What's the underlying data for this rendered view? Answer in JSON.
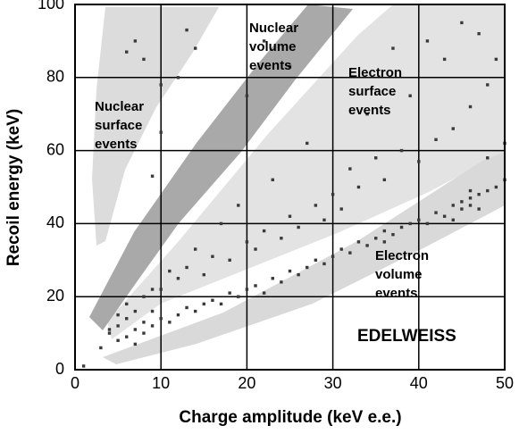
{
  "chart_data": {
    "type": "scatter",
    "x_label": "Charge amplitude (keV e.e.)",
    "y_label": "Recoil energy (keV)",
    "xlim": [
      0,
      50
    ],
    "ylim": [
      0,
      100
    ],
    "xticks": [
      0,
      10,
      20,
      30,
      40,
      50
    ],
    "yticks": [
      0,
      20,
      40,
      60,
      80,
      100
    ],
    "grid": true,
    "color": "#3a3a3a",
    "annotations": [
      [
        "Nuclear",
        "surface",
        "events"
      ],
      [
        "Nuclear",
        "volume",
        "events"
      ],
      [
        "Electron",
        "surface",
        "events"
      ],
      [
        "Electron",
        "volume",
        "events"
      ],
      [
        "EDELWEISS"
      ]
    ],
    "x": [
      1,
      4,
      5,
      5,
      6,
      6,
      7,
      7,
      8,
      8,
      9,
      9,
      10,
      11,
      12,
      13,
      14,
      15,
      16,
      17,
      18,
      19,
      20,
      21,
      22,
      23,
      24,
      25,
      26,
      27,
      28,
      29,
      30,
      31,
      32,
      33,
      34,
      35,
      36,
      37,
      38,
      39,
      40,
      41,
      42,
      43,
      44,
      45,
      45,
      46,
      46,
      47,
      47,
      48,
      49,
      50,
      46,
      44,
      36,
      6,
      8,
      10,
      12,
      13,
      15,
      16,
      18,
      20,
      21,
      22,
      24,
      25,
      26,
      28,
      29,
      30,
      31,
      32,
      33,
      35,
      36,
      38,
      40,
      42,
      44,
      46,
      48,
      49,
      39,
      41,
      45,
      37,
      34,
      27,
      23,
      19,
      17,
      14,
      11,
      9,
      7,
      5,
      4,
      3,
      6,
      7,
      8,
      10,
      12,
      13,
      14,
      20,
      22,
      25,
      43,
      47,
      50,
      48,
      10,
      9
    ],
    "y": [
      1,
      10,
      8,
      12,
      9,
      14,
      11,
      7,
      13,
      10,
      12,
      16,
      14,
      13,
      15,
      17,
      16,
      18,
      19,
      18,
      21,
      20,
      22,
      23,
      21,
      25,
      24,
      27,
      26,
      28,
      30,
      29,
      31,
      33,
      32,
      35,
      34,
      36,
      38,
      37,
      39,
      40,
      41,
      40,
      43,
      42,
      45,
      46,
      44,
      47,
      45,
      44,
      48,
      49,
      50,
      52,
      49,
      41,
      35,
      18,
      20,
      22,
      25,
      28,
      26,
      31,
      30,
      35,
      33,
      38,
      36,
      42,
      39,
      45,
      41,
      48,
      44,
      55,
      50,
      58,
      52,
      60,
      57,
      63,
      66,
      72,
      78,
      85,
      75,
      90,
      95,
      88,
      70,
      62,
      52,
      45,
      40,
      33,
      27,
      22,
      16,
      15,
      11,
      6,
      87,
      90,
      85,
      78,
      80,
      93,
      88,
      75,
      90,
      83,
      85,
      92,
      62,
      58,
      65,
      53
    ]
  }
}
